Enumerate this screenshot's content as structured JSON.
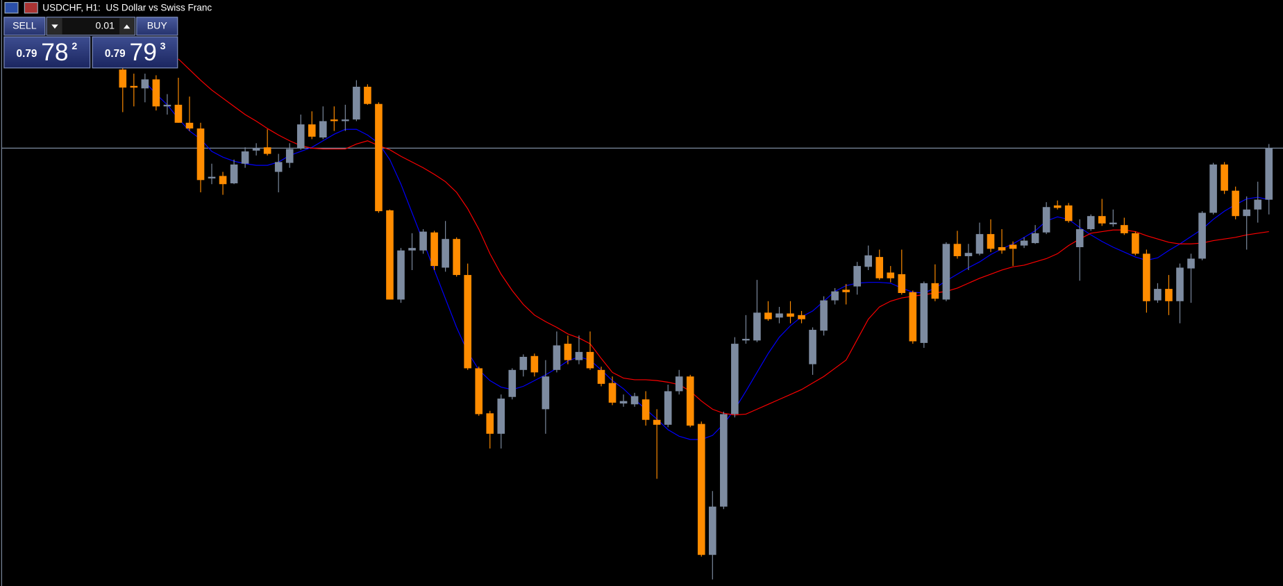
{
  "chart_data": {
    "type": "candlestick",
    "title": "USDCHF, H1:  US Dollar vs Swiss Franc",
    "ylim": [
      0.79247,
      0.79963
    ],
    "grid": false,
    "up_color": "#7d8ba0",
    "down_color": "#ff8c00",
    "bid_line": 0.79782,
    "bid_color": "#7d8ba0",
    "ohlc": [
      [
        0.79878,
        0.79888,
        0.79826,
        0.79856
      ],
      [
        0.79858,
        0.79873,
        0.79833,
        0.79856
      ],
      [
        0.79855,
        0.79873,
        0.79838,
        0.79866
      ],
      [
        0.79866,
        0.79871,
        0.79828,
        0.79833
      ],
      [
        0.79833,
        0.79848,
        0.79823,
        0.79835
      ],
      [
        0.79835,
        0.79868,
        0.79813,
        0.79813
      ],
      [
        0.79813,
        0.79845,
        0.79803,
        0.79806
      ],
      [
        0.79806,
        0.79813,
        0.79728,
        0.79743
      ],
      [
        0.79745,
        0.79763,
        0.79738,
        0.79747
      ],
      [
        0.79748,
        0.79753,
        0.79725,
        0.79738
      ],
      [
        0.79739,
        0.79768,
        0.79738,
        0.79762
      ],
      [
        0.79763,
        0.79783,
        0.79758,
        0.79778
      ],
      [
        0.79779,
        0.79788,
        0.79773,
        0.79782
      ],
      [
        0.79783,
        0.79805,
        0.79773,
        0.79775
      ],
      [
        0.79753,
        0.79775,
        0.79728,
        0.79765
      ],
      [
        0.79764,
        0.79788,
        0.79758,
        0.79781
      ],
      [
        0.79782,
        0.79823,
        0.7978,
        0.79811
      ],
      [
        0.79811,
        0.79827,
        0.79793,
        0.79796
      ],
      [
        0.79795,
        0.79833,
        0.79793,
        0.79815
      ],
      [
        0.79817,
        0.79833,
        0.79803,
        0.79815
      ],
      [
        0.79815,
        0.79835,
        0.79803,
        0.79817
      ],
      [
        0.79817,
        0.79865,
        0.79815,
        0.79857
      ],
      [
        0.79857,
        0.7986,
        0.79835,
        0.79836
      ],
      [
        0.79836,
        0.79838,
        0.79703,
        0.79705
      ],
      [
        0.79706,
        0.79707,
        0.79597,
        0.79597
      ],
      [
        0.79597,
        0.7966,
        0.79593,
        0.79657
      ],
      [
        0.79657,
        0.79678,
        0.79633,
        0.7966
      ],
      [
        0.79657,
        0.79683,
        0.79653,
        0.7968
      ],
      [
        0.79679,
        0.79681,
        0.79633,
        0.79638
      ],
      [
        0.79636,
        0.79693,
        0.79631,
        0.79671
      ],
      [
        0.79671,
        0.79673,
        0.79625,
        0.79627
      ],
      [
        0.79627,
        0.79641,
        0.79511,
        0.79513
      ],
      [
        0.79513,
        0.79515,
        0.79455,
        0.79457
      ],
      [
        0.79458,
        0.79461,
        0.79415,
        0.79433
      ],
      [
        0.79433,
        0.79481,
        0.79415,
        0.79476
      ],
      [
        0.79478,
        0.79513,
        0.79475,
        0.79511
      ],
      [
        0.79511,
        0.7953,
        0.79503,
        0.79527
      ],
      [
        0.79528,
        0.79531,
        0.79503,
        0.79508
      ],
      [
        0.79463,
        0.79523,
        0.79433,
        0.79503
      ],
      [
        0.79511,
        0.79558,
        0.79508,
        0.79541
      ],
      [
        0.79543,
        0.79553,
        0.79518,
        0.79523
      ],
      [
        0.79523,
        0.79553,
        0.79518,
        0.79533
      ],
      [
        0.79533,
        0.79558,
        0.79511,
        0.79513
      ],
      [
        0.79511,
        0.79515,
        0.79491,
        0.79494
      ],
      [
        0.79495,
        0.79503,
        0.79468,
        0.79471
      ],
      [
        0.7947,
        0.79481,
        0.79466,
        0.79473
      ],
      [
        0.79469,
        0.79483,
        0.79466,
        0.79479
      ],
      [
        0.79475,
        0.79485,
        0.79443,
        0.7945
      ],
      [
        0.7945,
        0.79463,
        0.79378,
        0.79444
      ],
      [
        0.79444,
        0.79493,
        0.79441,
        0.79485
      ],
      [
        0.79485,
        0.79511,
        0.79481,
        0.79503
      ],
      [
        0.79503,
        0.79505,
        0.79441,
        0.79443
      ],
      [
        0.79445,
        0.79448,
        0.79283,
        0.79285
      ],
      [
        0.79285,
        0.79363,
        0.79255,
        0.79344
      ],
      [
        0.79344,
        0.7946,
        0.79341,
        0.79457
      ],
      [
        0.79457,
        0.79551,
        0.79453,
        0.79543
      ],
      [
        0.79547,
        0.79578,
        0.79543,
        0.79549
      ],
      [
        0.79547,
        0.79621,
        0.79545,
        0.79581
      ],
      [
        0.79581,
        0.79595,
        0.79571,
        0.79573
      ],
      [
        0.79575,
        0.79588,
        0.79568,
        0.7958
      ],
      [
        0.7958,
        0.79595,
        0.79568,
        0.79576
      ],
      [
        0.79578,
        0.79583,
        0.79568,
        0.79573
      ],
      [
        0.79518,
        0.79563,
        0.79505,
        0.7956
      ],
      [
        0.79559,
        0.79601,
        0.79553,
        0.79596
      ],
      [
        0.79596,
        0.79611,
        0.79591,
        0.79607
      ],
      [
        0.79609,
        0.79616,
        0.79591,
        0.79606
      ],
      [
        0.79613,
        0.79643,
        0.79603,
        0.79638
      ],
      [
        0.79637,
        0.79663,
        0.79633,
        0.79651
      ],
      [
        0.79649,
        0.79658,
        0.79621,
        0.79623
      ],
      [
        0.7963,
        0.79638,
        0.79618,
        0.79623
      ],
      [
        0.79628,
        0.79658,
        0.79603,
        0.79605
      ],
      [
        0.79606,
        0.79608,
        0.79543,
        0.79546
      ],
      [
        0.79544,
        0.79619,
        0.79538,
        0.79617
      ],
      [
        0.79617,
        0.7964,
        0.79595,
        0.79598
      ],
      [
        0.79597,
        0.79667,
        0.79595,
        0.79665
      ],
      [
        0.79665,
        0.79681,
        0.79647,
        0.7965
      ],
      [
        0.7965,
        0.79665,
        0.79633,
        0.79654
      ],
      [
        0.79653,
        0.79691,
        0.79651,
        0.79677
      ],
      [
        0.79677,
        0.79695,
        0.79655,
        0.79659
      ],
      [
        0.79661,
        0.79683,
        0.79653,
        0.79657
      ],
      [
        0.79664,
        0.79668,
        0.79638,
        0.79659
      ],
      [
        0.79663,
        0.79673,
        0.7966,
        0.79669
      ],
      [
        0.79666,
        0.79688,
        0.79665,
        0.79678
      ],
      [
        0.79679,
        0.79716,
        0.79677,
        0.7971
      ],
      [
        0.79712,
        0.79718,
        0.79707,
        0.79709
      ],
      [
        0.79712,
        0.79715,
        0.79691,
        0.79693
      ],
      [
        0.79661,
        0.79695,
        0.7962,
        0.79683
      ],
      [
        0.79683,
        0.79701,
        0.79681,
        0.79699
      ],
      [
        0.79699,
        0.7972,
        0.79687,
        0.7969
      ],
      [
        0.79689,
        0.79707,
        0.79686,
        0.79691
      ],
      [
        0.79688,
        0.79697,
        0.79676,
        0.79678
      ],
      [
        0.79678,
        0.7968,
        0.79651,
        0.79653
      ],
      [
        0.79653,
        0.79658,
        0.79581,
        0.79595
      ],
      [
        0.79596,
        0.79617,
        0.79593,
        0.7961
      ],
      [
        0.7961,
        0.79627,
        0.79578,
        0.79595
      ],
      [
        0.79595,
        0.79641,
        0.79568,
        0.79636
      ],
      [
        0.79635,
        0.79653,
        0.79593,
        0.79647
      ],
      [
        0.79647,
        0.79705,
        0.79645,
        0.79703
      ],
      [
        0.79703,
        0.79764,
        0.79701,
        0.79762
      ],
      [
        0.79762,
        0.79765,
        0.79726,
        0.7973
      ],
      [
        0.7973,
        0.79735,
        0.79695,
        0.79699
      ],
      [
        0.79699,
        0.79723,
        0.79658,
        0.79707
      ],
      [
        0.79707,
        0.79741,
        0.79691,
        0.79719
      ],
      [
        0.79719,
        0.79787,
        0.79701,
        0.79782
      ]
    ],
    "series": [
      {
        "color": "#0000ff",
        "values": [
          null,
          null,
          0.79863,
          0.79848,
          0.79835,
          0.79818,
          0.79803,
          0.79793,
          0.79778,
          0.79771,
          0.79766,
          0.79763,
          0.79761,
          0.79761,
          0.79765,
          0.79773,
          0.79778,
          0.79783,
          0.79791,
          0.79799,
          0.79805,
          0.79805,
          0.79798,
          0.79788,
          0.79768,
          0.79738,
          0.79703,
          0.79668,
          0.79633,
          0.79598,
          0.79563,
          0.79533,
          0.79511,
          0.79498,
          0.7949,
          0.79487,
          0.79491,
          0.79498,
          0.79505,
          0.79513,
          0.79522,
          0.79527,
          0.79523,
          0.79511,
          0.79498,
          0.79488,
          0.79475,
          0.79463,
          0.79451,
          0.79438,
          0.7943,
          0.79426,
          0.79426,
          0.79431,
          0.79445,
          0.79463,
          0.79485,
          0.79508,
          0.79531,
          0.79551,
          0.79565,
          0.79576,
          0.79583,
          0.79595,
          0.79607,
          0.79614,
          0.79617,
          0.79618,
          0.79618,
          0.79617,
          0.79611,
          0.79606,
          0.79605,
          0.79611,
          0.7962,
          0.79628,
          0.79636,
          0.79643,
          0.79652,
          0.79659,
          0.79665,
          0.79673,
          0.79681,
          0.79693,
          0.79698,
          0.79695,
          0.79685,
          0.79676,
          0.79668,
          0.79661,
          0.79655,
          0.79649,
          0.79645,
          0.79648,
          0.79657,
          0.79665,
          0.79674,
          0.79683,
          0.79695,
          0.79705,
          0.79713,
          0.7972,
          0.79722,
          0.79719
        ]
      },
      {
        "color": "#ff0000",
        "values": [
          null,
          null,
          null,
          null,
          null,
          0.79891,
          0.79878,
          0.79865,
          0.79853,
          0.79843,
          0.79833,
          0.79823,
          0.79815,
          0.79806,
          0.79798,
          0.79791,
          0.79785,
          0.79782,
          0.79781,
          0.79781,
          0.79781,
          0.79787,
          0.79791,
          0.79785,
          0.7978,
          0.79772,
          0.79765,
          0.79758,
          0.7975,
          0.79741,
          0.79728,
          0.79708,
          0.79683,
          0.79653,
          0.79628,
          0.79608,
          0.79591,
          0.79578,
          0.7957,
          0.79563,
          0.79555,
          0.7955,
          0.79543,
          0.79525,
          0.79508,
          0.79501,
          0.79499,
          0.79499,
          0.79498,
          0.79496,
          0.79493,
          0.79485,
          0.79473,
          0.79463,
          0.79458,
          0.79456,
          0.79457,
          0.79463,
          0.79469,
          0.79475,
          0.79481,
          0.79487,
          0.79495,
          0.79503,
          0.79513,
          0.79523,
          0.79548,
          0.79573,
          0.79588,
          0.79595,
          0.79599,
          0.79601,
          0.79603,
          0.79605,
          0.79607,
          0.79611,
          0.79617,
          0.79623,
          0.79628,
          0.79633,
          0.79637,
          0.79639,
          0.79643,
          0.79647,
          0.79653,
          0.79663,
          0.79671,
          0.79678,
          0.7968,
          0.79682,
          0.79682,
          0.7968,
          0.79675,
          0.79671,
          0.79667,
          0.79665,
          0.79665,
          0.79666,
          0.79669,
          0.79671,
          0.79673,
          0.79676,
          0.79678,
          0.7968
        ]
      }
    ]
  },
  "trade_panel": {
    "sell": "SELL",
    "buy": "BUY",
    "lot": "0.01",
    "sell_price": {
      "prefix": "0.79",
      "main": "78",
      "suffix": "2"
    },
    "buy_price": {
      "prefix": "0.79",
      "main": "79",
      "suffix": "3"
    }
  }
}
